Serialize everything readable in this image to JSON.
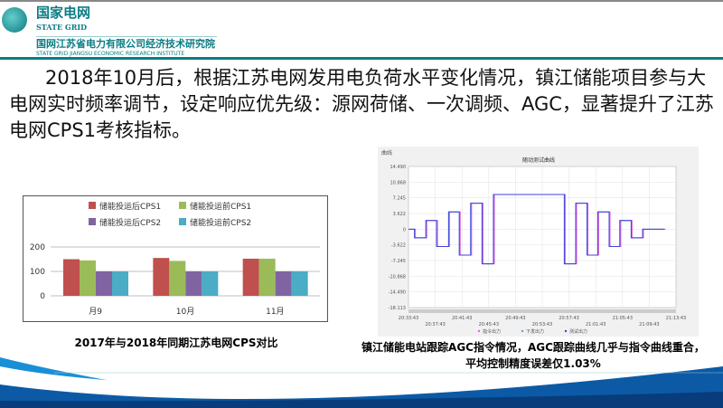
{
  "header": {
    "org_cn": "国家电网",
    "org_en": "STATE GRID",
    "institute_cn": "国网江苏省电力有限公司经济技术研究院",
    "institute_en": "STATE GRID JIANGSU ECONOMIC RESEARCH INSTITUTE"
  },
  "body_text": "2018年10月后，根据江苏电网发用电负荷水平变化情况，镇江储能项目参与大电网实时频率调节，设定响应优先级：源网荷储、一次调频、AGC，显著提升了江苏电网CPS1考核指标。",
  "chart_data": [
    {
      "type": "bar",
      "title": "",
      "categories": [
        "月9",
        "10月",
        "11月"
      ],
      "series": [
        {
          "name": "储能投运后CPS1",
          "color": "#c0504d",
          "values": [
            150,
            155,
            152
          ]
        },
        {
          "name": "储能投运前CPS1",
          "color": "#9bbb59",
          "values": [
            145,
            143,
            152
          ]
        },
        {
          "name": "储能投运后CPS2",
          "color": "#8064a2",
          "values": [
            100,
            100,
            100
          ]
        },
        {
          "name": "储能投运前CPS2",
          "color": "#4bacc6",
          "values": [
            100,
            100,
            100
          ]
        }
      ],
      "yticks": [
        "0",
        "100",
        "200"
      ],
      "ylim": [
        0,
        200
      ],
      "grid": true,
      "legend": "top",
      "caption": "2017年与2018年同期江苏电网CPS对比"
    },
    {
      "type": "line",
      "corner_label": "曲线",
      "title": "随动测试曲线",
      "yticks": [
        "14.490",
        "10.868",
        "7.245",
        "3.622",
        "0",
        "-3.622",
        "-7.245",
        "-10.868",
        "-14.490",
        "-18.113"
      ],
      "ylim": [
        -18.113,
        14.49
      ],
      "xticks": [
        "20:33:43",
        "20:37:43",
        "20:41:43",
        "20:45:43",
        "20:49:43",
        "20:53:43",
        "20:57:43",
        "21:01:43",
        "21:05:43",
        "21:09:43",
        "21:13:43"
      ],
      "steps": [
        {
          "t": "20:33:43",
          "v": 0
        },
        {
          "t": "20:34:37",
          "v": -2
        },
        {
          "t": "20:36:19",
          "v": 2
        },
        {
          "t": "20:37:55",
          "v": -4
        },
        {
          "t": "20:39:43",
          "v": 4
        },
        {
          "t": "20:41:19",
          "v": -6
        },
        {
          "t": "20:43:01",
          "v": 6
        },
        {
          "t": "20:44:43",
          "v": -8
        },
        {
          "t": "20:46:25",
          "v": 8
        },
        {
          "t": "20:57:01",
          "v": -8
        },
        {
          "t": "20:58:43",
          "v": 6
        },
        {
          "t": "21:00:25",
          "v": -6
        },
        {
          "t": "21:02:01",
          "v": 4
        },
        {
          "t": "21:03:43",
          "v": -4
        },
        {
          "t": "21:05:19",
          "v": 2
        },
        {
          "t": "21:07:01",
          "v": -2
        },
        {
          "t": "21:08:43",
          "v": 0
        },
        {
          "t": "21:12:01",
          "v": 0
        }
      ],
      "series": [
        {
          "name": "指令出力",
          "color": "#e060e0"
        },
        {
          "name": "下发出力",
          "color": "#60a0e0"
        },
        {
          "name": "测试出力",
          "color": "#4040e0"
        }
      ],
      "grid": true,
      "legend": "bottom",
      "caption": "镇江储能电站跟踪AGC指令情况，AGC跟踪曲线几乎与指令曲线重合，平均控制精度误差仅1.03%"
    }
  ]
}
